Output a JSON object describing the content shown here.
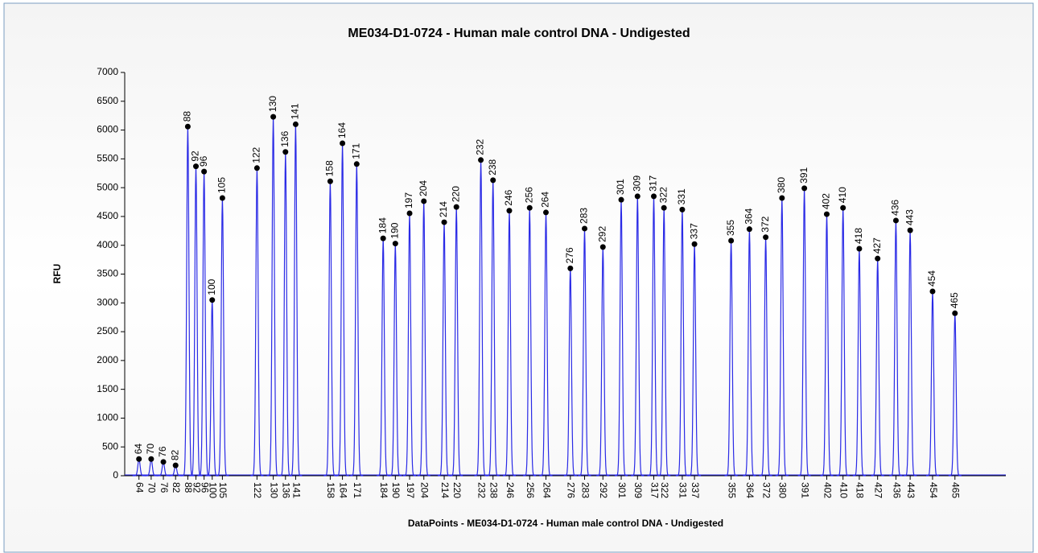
{
  "chart_data": {
    "type": "peaks",
    "title": "ME034-D1-0724 - Human male control DNA - Undigested",
    "x_label": "DataPoints - ME034-D1-0724 - Human male control DNA - Undigested",
    "y_label": "RFU",
    "x": [
      64,
      70,
      76,
      82,
      88,
      92,
      96,
      100,
      105,
      122,
      130,
      136,
      141,
      158,
      164,
      171,
      184,
      190,
      197,
      204,
      214,
      220,
      232,
      238,
      246,
      256,
      264,
      276,
      283,
      292,
      301,
      309,
      317,
      322,
      331,
      337,
      355,
      364,
      372,
      380,
      391,
      402,
      410,
      418,
      427,
      436,
      443,
      454,
      465
    ],
    "values": [
      290,
      290,
      240,
      180,
      6060,
      5370,
      5280,
      3050,
      4820,
      5340,
      6230,
      5620,
      6100,
      5110,
      5770,
      5410,
      4120,
      4030,
      4555,
      4765,
      4400,
      4665,
      5480,
      5130,
      4600,
      4650,
      4570,
      3600,
      4290,
      3970,
      4790,
      4850,
      4850,
      4650,
      4620,
      4020,
      4080,
      4280,
      4140,
      4820,
      4990,
      4540,
      4650,
      3940,
      3770,
      4430,
      4260,
      3200,
      2820
    ],
    "color": "#2a2ae6",
    "marker_color": "#000000",
    "xlim": [
      57,
      490
    ],
    "ylim": [
      0,
      7000
    ],
    "yticks": [
      0,
      500,
      1000,
      1500,
      2000,
      2500,
      3000,
      3500,
      4000,
      4500,
      5000,
      5500,
      6000,
      6500,
      7000
    ]
  }
}
